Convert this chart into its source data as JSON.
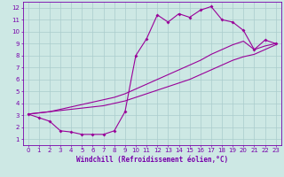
{
  "xlabel": "Windchill (Refroidissement éolien,°C)",
  "background_color": "#cde8e4",
  "grid_color": "#aacccc",
  "line_color": "#990099",
  "spine_color": "#7700aa",
  "tick_color": "#7700aa",
  "xlim": [
    -0.5,
    23.5
  ],
  "ylim": [
    0.5,
    12.5
  ],
  "xticks": [
    0,
    1,
    2,
    3,
    4,
    5,
    6,
    7,
    8,
    9,
    10,
    11,
    12,
    13,
    14,
    15,
    16,
    17,
    18,
    19,
    20,
    21,
    22,
    23
  ],
  "yticks": [
    1,
    2,
    3,
    4,
    5,
    6,
    7,
    8,
    9,
    10,
    11,
    12
  ],
  "line1_x": [
    0,
    1,
    2,
    3,
    4,
    5,
    6,
    7,
    8,
    9,
    10,
    11,
    12,
    13,
    14,
    15,
    16,
    17,
    18,
    19,
    20,
    21,
    22,
    23
  ],
  "line1_y": [
    3.1,
    2.8,
    2.5,
    1.7,
    1.6,
    1.4,
    1.4,
    1.4,
    1.7,
    3.3,
    8.0,
    9.4,
    11.4,
    10.8,
    11.5,
    11.2,
    11.8,
    12.1,
    11.0,
    10.8,
    10.1,
    8.5,
    9.3,
    9.0
  ],
  "line2_x": [
    0,
    1,
    2,
    3,
    4,
    5,
    6,
    7,
    8,
    9,
    10,
    11,
    12,
    13,
    14,
    15,
    16,
    17,
    18,
    19,
    20,
    21,
    22,
    23
  ],
  "line2_y": [
    3.1,
    3.2,
    3.3,
    3.5,
    3.7,
    3.9,
    4.1,
    4.3,
    4.5,
    4.8,
    5.2,
    5.6,
    6.0,
    6.4,
    6.8,
    7.2,
    7.6,
    8.1,
    8.5,
    8.9,
    9.2,
    8.5,
    8.8,
    9.0
  ],
  "line3_x": [
    0,
    1,
    2,
    3,
    4,
    5,
    6,
    7,
    8,
    9,
    10,
    11,
    12,
    13,
    14,
    15,
    16,
    17,
    18,
    19,
    20,
    21,
    22,
    23
  ],
  "line3_y": [
    3.1,
    3.2,
    3.3,
    3.4,
    3.5,
    3.6,
    3.7,
    3.8,
    4.0,
    4.2,
    4.5,
    4.8,
    5.1,
    5.4,
    5.7,
    6.0,
    6.4,
    6.8,
    7.2,
    7.6,
    7.9,
    8.1,
    8.5,
    8.9
  ],
  "markersize": 2.0,
  "linewidth": 0.8,
  "xlabel_fontsize": 5.5,
  "tick_fontsize": 5.0
}
